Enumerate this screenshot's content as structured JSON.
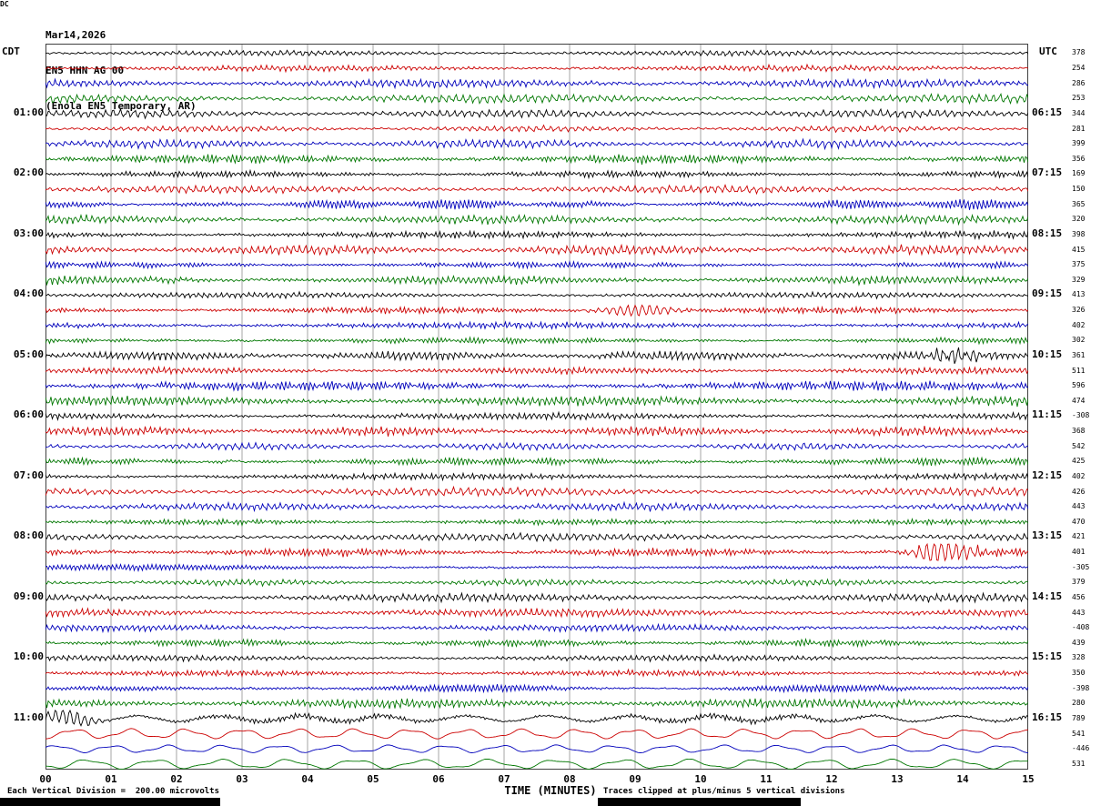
{
  "title": {
    "date": "Mar14,2026",
    "station": "EN5 HHN AG 00",
    "location": "(Enola EN5 Temporary, AR)"
  },
  "axes": {
    "left_header": "CDT",
    "right_header": "UTC",
    "dc_header": "DC",
    "x_label": "TIME (MINUTES)",
    "x_ticks": [
      "00",
      "01",
      "02",
      "03",
      "04",
      "05",
      "06",
      "07",
      "08",
      "09",
      "10",
      "11",
      "12",
      "13",
      "14",
      "15"
    ]
  },
  "footer": {
    "left": "Each Vertical Division =  200.00 microvolts",
    "right": "Traces clipped at plus/minus 5 vertical divisions"
  },
  "chart_data": {
    "type": "line",
    "subtype": "helicorder-seismogram",
    "x_range_minutes": [
      0,
      15
    ],
    "minutes_per_line": 15,
    "vertical_division_microvolts": 200.0,
    "clip_divisions": 5,
    "grid": "vertical-minute-lines",
    "trace_colors_cycle": [
      "#000000",
      "#cc0000",
      "#0000bb",
      "#007700"
    ],
    "traces": [
      {
        "cdt": "",
        "utc": "",
        "dc": 378
      },
      {
        "cdt": "",
        "utc": "",
        "dc": 254
      },
      {
        "cdt": "",
        "utc": "",
        "dc": 286
      },
      {
        "cdt": "",
        "utc": "",
        "dc": 253
      },
      {
        "cdt": "01:00",
        "utc": "06:15",
        "dc": 344
      },
      {
        "cdt": "",
        "utc": "",
        "dc": 281
      },
      {
        "cdt": "",
        "utc": "",
        "dc": 399
      },
      {
        "cdt": "",
        "utc": "",
        "dc": 356
      },
      {
        "cdt": "02:00",
        "utc": "07:15",
        "dc": 169
      },
      {
        "cdt": "",
        "utc": "",
        "dc": 150
      },
      {
        "cdt": "",
        "utc": "",
        "dc": 365
      },
      {
        "cdt": "",
        "utc": "",
        "dc": 320
      },
      {
        "cdt": "03:00",
        "utc": "08:15",
        "dc": 398
      },
      {
        "cdt": "",
        "utc": "",
        "dc": 415
      },
      {
        "cdt": "",
        "utc": "",
        "dc": 375
      },
      {
        "cdt": "",
        "utc": "",
        "dc": 329
      },
      {
        "cdt": "04:00",
        "utc": "09:15",
        "dc": 413
      },
      {
        "cdt": "",
        "utc": "",
        "dc": 326,
        "events": [
          {
            "t": 9.05,
            "a": 6,
            "w": 0.4
          }
        ]
      },
      {
        "cdt": "",
        "utc": "",
        "dc": 402
      },
      {
        "cdt": "",
        "utc": "",
        "dc": 302
      },
      {
        "cdt": "05:00",
        "utc": "10:15",
        "dc": 361,
        "events": [
          {
            "t": 13.9,
            "a": 6,
            "w": 0.3
          }
        ]
      },
      {
        "cdt": "",
        "utc": "",
        "dc": 511
      },
      {
        "cdt": "",
        "utc": "",
        "dc": 596
      },
      {
        "cdt": "",
        "utc": "",
        "dc": 474
      },
      {
        "cdt": "06:00",
        "utc": "11:15",
        "dc": -308
      },
      {
        "cdt": "",
        "utc": "",
        "dc": 368
      },
      {
        "cdt": "",
        "utc": "",
        "dc": 542
      },
      {
        "cdt": "",
        "utc": "",
        "dc": 425
      },
      {
        "cdt": "07:00",
        "utc": "12:15",
        "dc": 402
      },
      {
        "cdt": "",
        "utc": "",
        "dc": 426
      },
      {
        "cdt": "",
        "utc": "",
        "dc": 443
      },
      {
        "cdt": "",
        "utc": "",
        "dc": 470
      },
      {
        "cdt": "08:00",
        "utc": "13:15",
        "dc": 421
      },
      {
        "cdt": "",
        "utc": "",
        "dc": 401,
        "events": [
          {
            "t": 13.6,
            "a": 13,
            "w": 0.22
          },
          {
            "t": 14.1,
            "a": 5,
            "w": 0.18
          }
        ]
      },
      {
        "cdt": "",
        "utc": "",
        "dc": -305
      },
      {
        "cdt": "",
        "utc": "",
        "dc": 379
      },
      {
        "cdt": "09:00",
        "utc": "14:15",
        "dc": 456
      },
      {
        "cdt": "",
        "utc": "",
        "dc": 443
      },
      {
        "cdt": "",
        "utc": "",
        "dc": -408
      },
      {
        "cdt": "",
        "utc": "",
        "dc": 439
      },
      {
        "cdt": "10:00",
        "utc": "15:15",
        "dc": 328
      },
      {
        "cdt": "",
        "utc": "",
        "dc": 350
      },
      {
        "cdt": "",
        "utc": "",
        "dc": -398
      },
      {
        "cdt": "",
        "utc": "",
        "dc": 280
      },
      {
        "cdt": "11:00",
        "utc": "16:15",
        "dc": 789,
        "style": "mixed",
        "events": [
          {
            "t": 0.35,
            "a": 8,
            "w": 0.3
          }
        ]
      },
      {
        "cdt": "",
        "utc": "",
        "dc": 541,
        "style": "long"
      },
      {
        "cdt": "",
        "utc": "",
        "dc": -446,
        "style": "long"
      },
      {
        "cdt": "",
        "utc": "",
        "dc": 531,
        "style": "long"
      }
    ]
  }
}
